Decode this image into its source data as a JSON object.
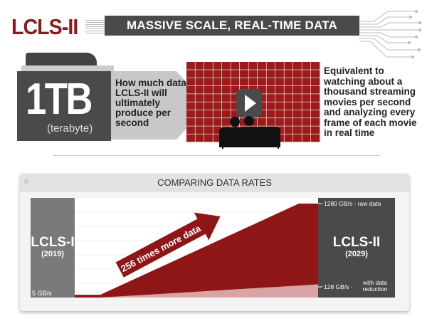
{
  "header": {
    "logo": "LCLS-II",
    "banner": "MASSIVE SCALE, REAL-TIME DATA ANALYSIS"
  },
  "stat": {
    "value": "1TB",
    "unit": "(terabyte)",
    "description": "How much data LCLS-II will ultimately produce per second"
  },
  "equivalent": {
    "text": "Equivalent to watching about a thousand streaming movies per second and analyzing every frame of each movie in real time",
    "icon": "movie-theater-play-icon"
  },
  "colors": {
    "brand_red": "#8b1a1a",
    "dark_gray": "#4a4a4c",
    "mid_gray": "#7a7a7c",
    "pink": "#d9a3a3"
  },
  "panel": {
    "title": "COMPARING DATA RATES",
    "left_column": {
      "label": "LCLS-I",
      "year": "(2019)"
    },
    "right_column": {
      "label": "LCLS-II",
      "year": "(2029)"
    },
    "arrow_label": "256 times more data",
    "labels": {
      "low": "5 GB/s",
      "raw": "1280 GB/s - raw data",
      "reduced_value": "128 GB/s -",
      "reduced_note1": "with data",
      "reduced_note2": "reduction"
    }
  },
  "chart_data": {
    "type": "area",
    "categories": [
      "LCLS-I (2019)",
      "LCLS-II (2029)"
    ],
    "series": [
      {
        "name": "raw data",
        "values": [
          5,
          1280
        ]
      },
      {
        "name": "with data reduction",
        "values": [
          5,
          128
        ]
      }
    ],
    "unit": "GB/s"
  }
}
